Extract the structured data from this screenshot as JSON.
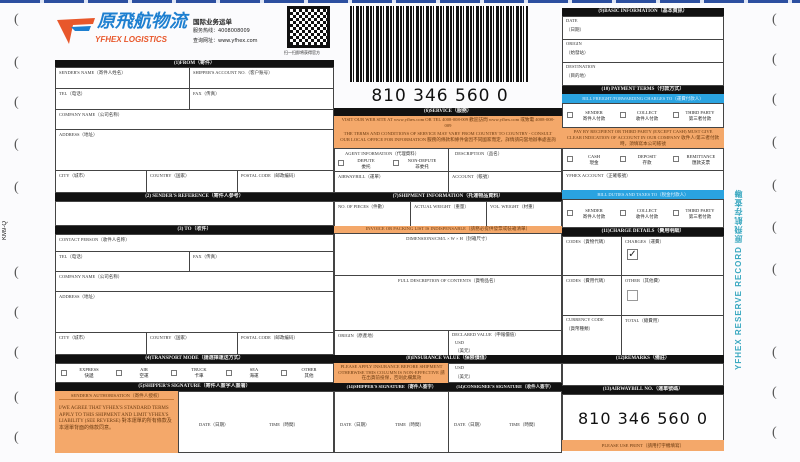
{
  "logo": {
    "cn": "原飛航物流",
    "en": "YFHEX LOGISTICS",
    "title": "国际业务运单",
    "hotline": "服务热线：4008008009",
    "website": "查询网址：www.yfhex.com",
    "qr_caption": "扫一扫即将获得官方"
  },
  "awb_number": "810 346 560 0",
  "form_code": "KM9-Q",
  "side_text": "YFHEX RESERVE RECORD 原飛航存查聯",
  "colors": {
    "orange": "#f4a86a",
    "blue": "#2aa3e0",
    "header": "#111111",
    "teal": "#3aa8c0"
  },
  "from": {
    "header": "(1)FROM（寄件）",
    "sender_name": "SENDER'S NAME（寄件人姓名）",
    "shipper_account": "SHIPPER'S ACCOUNT NO.（客户账号）",
    "tel": "TEL（电话）",
    "fax": "FAX（传真）",
    "company": "COMPANY NAME（公司名称）",
    "address": "ADDRESS（地址）",
    "city": "CITY（城市）",
    "country": "COUNTRY（国家）",
    "postal": "POSTAL CODE（邮政编码）"
  },
  "reference": {
    "header": "(2) SENDER'S REFERENCE（寄件人参考）"
  },
  "to": {
    "header": "(3) TO（收件）",
    "contact": "CONTACT PERSON（收件人名称）",
    "tel": "TEL（电话）",
    "fax": "FAX（传真）",
    "company": "COMPANY NAME（公司名称）",
    "address": "ADDRESS（地址）",
    "city": "CITY（城市）",
    "country": "COUNTRY（国家）",
    "postal": "POSTAL CODE（邮政编码）"
  },
  "transport": {
    "header": "(4)TRANSPORT MODE（請選擇運送方式）",
    "options": [
      {
        "en": "EXPRESS",
        "cn": "快遞"
      },
      {
        "en": "AIR",
        "cn": "空運"
      },
      {
        "en": "TRUCK",
        "cn": "卡車"
      },
      {
        "en": "SEA",
        "cn": "海運"
      },
      {
        "en": "OTHER",
        "cn": "其他"
      }
    ]
  },
  "shipper_sig": {
    "header": "(5)SHIPPER'S SIGNATURE（寄件人簽字人簽署）",
    "auth_title": "SENDER'S AUTHORISATION（寄件人授权）",
    "auth_text": "I/WE AGREE THAT YFHEX'S STANDARD TERMS APPLY TO THIS SHIPMENT AND LIMIT YFHEX'S LIABILITY (SEE REVERSE) 對本運單的所有條款及本運單背面的條款同意。",
    "date": "DATE（日期）",
    "time": "TIME（時間）"
  },
  "service": {
    "header": "(6)SERVICE（服務）",
    "visit": "VISIT OUR WEB SITE AT www.yfhex.com OR TEL 4008-008-009 歡迎訪問 www.yfhex.com 或致電 4008-008-009",
    "terms": "THE TERMS AND CONDITIONS OF SERVICE MAY VARY FROM COUNTRY TO COUNTRY - CONSULT OUR LOCAL OFFICE FOR INFORMATION 服務的條款和條件會因不同國家而定，詳情請向當地辦事處查詢",
    "agent": "AGENT INFORMATION（代理資料）",
    "depute": {
      "en": "DEPUTE",
      "cn": "委托"
    },
    "nondepute": {
      "en": "NON-DEPUTE",
      "cn": "非委托"
    },
    "description": "DESCRIPTION（品名）",
    "airwaybill": "AIRWAYBILL（運單）",
    "account": "ACCOUNT（帳號）"
  },
  "shipment": {
    "header": "(7)SHIPMENT INFORMATION（托運物品資料）",
    "pieces": "NO. OF PIECES（件數）",
    "actual_weight": "ACTUAL WEIGHT（重量）",
    "vol_weight": "VOL. WEIGHT（材重）",
    "invoice_note": "INVOICE OR PACKING LIST IS INDISPENSABLE（請務必提供發票或裝箱清單）",
    "dimensions": "DIMENSIONS/CM/L × W × H（封箱尺寸）",
    "contents": "FULL DESCRIPTION OF CONTENTS（貨物品名）",
    "origin": "ORIGIN（原產地）",
    "declared": "DECLARED VALUE（申報價值）",
    "usd": "USD",
    "usd_cn": "（美元）"
  },
  "insurance": {
    "header": "(8)INSURANCE VALUE（保險價值）",
    "note": "PLEASE APPLY INSURANCE BEFORE SHIPMENT OTHERWISE THIS COLUMN IS NON-EFFECTIVE 請在出貨前投保，否則此欄無效",
    "usd": "USD",
    "usd_cn": "（美元）"
  },
  "sig14a": {
    "header": "(14)SHIPPER'S SIGNATURE（寄件人簽字）",
    "date": "DATE（日期）",
    "time": "TIME（時間）"
  },
  "sig14b": {
    "header": "(14)CONSIGNEE'S SIGNATURE（收件人簽字）",
    "date": "DATE（日期）",
    "time": "TIME（時間）"
  },
  "basic": {
    "header": "(9)BASIC INFORMATION（基本資訊）",
    "date": "DATE",
    "date_cn": "（日期）",
    "origin": "ORIGIN",
    "origin_cn": "（始發站）",
    "destination": "DESTINATION",
    "destination_cn": "（目的地）"
  },
  "payment": {
    "header": "(10) PAYMENT TERMS（付款方式）",
    "bill_freight": "BILL FREIGHT/FORWARDING CHARGES TO（運費付款人）",
    "payers": [
      {
        "en": "SENDER",
        "cn": "寄件人付款"
      },
      {
        "en": "COLLECT",
        "cn": "收件人付款"
      },
      {
        "en": "THIRD PARTY",
        "cn": "第三者付款"
      }
    ],
    "note": "PAY BY RECIPIENT OR THIRD PARTY (EXCEPT CASH) MUST GIVE CLEAR INDICATION OF ACCOUNT IN OUR COMPANY 收件人/第三者付款時，須填寫本公司帳號",
    "methods": [
      {
        "en": "CASH",
        "cn": "現金"
      },
      {
        "en": "DEPOSIT",
        "cn": "存款"
      },
      {
        "en": "REMITTANCE",
        "cn": "匯款支票"
      }
    ],
    "yfhex_account": "YFHEX ACCOUNT（正確帳號）",
    "bill_duties": "BILL DUTIES AND TAXES TO（稅金付款人）",
    "payers2": [
      {
        "en": "SENDER",
        "cn": "寄件人付款"
      },
      {
        "en": "COLLECT",
        "cn": "收件人付款"
      },
      {
        "en": "THIRD PARTY",
        "cn": "第三者付款"
      }
    ]
  },
  "charges": {
    "header": "(11)CHARGE DETAILS（費用明細）",
    "codes1": "CODES（貨物代碼）",
    "charges": "CHARGES（運費）",
    "charges_checked": true,
    "codes2": "CODES（費用代碼）",
    "other": "OTHER（其他費）",
    "other_checked": false,
    "currency": "CURRENCY CODE",
    "currency_cn": "（貨幣種類）",
    "total": "TOTAL（總費用）"
  },
  "remarks": {
    "header": "(12)REMARKS（備註）"
  },
  "awb": {
    "header": "(13)AIRWAYBILL NO.（運單號碼）",
    "print_note": "PLEASE USE PRINT（請用打字機填寫）"
  }
}
